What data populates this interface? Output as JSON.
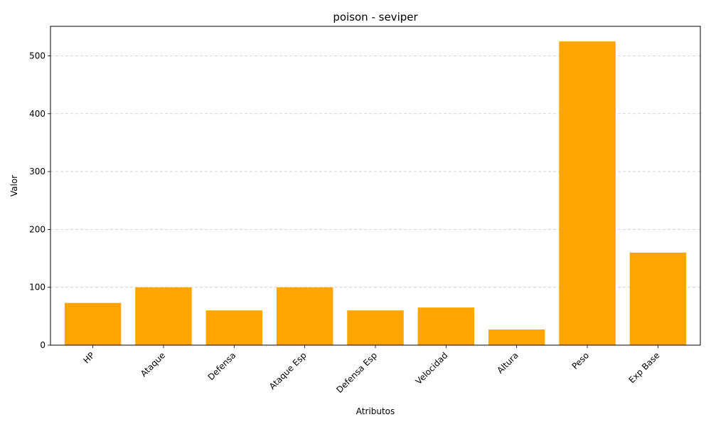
{
  "chart_data": {
    "type": "bar",
    "title": "poison - seviper",
    "xlabel": "Atributos",
    "ylabel": "Valor",
    "categories": [
      "HP",
      "Ataque",
      "Defensa",
      "Ataque Esp",
      "Defensa Esp",
      "Velocidad",
      "Altura",
      "Peso",
      "Exp Base"
    ],
    "values": [
      73,
      100,
      60,
      100,
      60,
      65,
      27,
      525,
      160
    ],
    "ylim": [
      0,
      551
    ],
    "yticks": [
      0,
      100,
      200,
      300,
      400,
      500
    ],
    "grid": "y-dashed",
    "bar_color": "#FFA500",
    "x_tick_rotation": 45
  }
}
